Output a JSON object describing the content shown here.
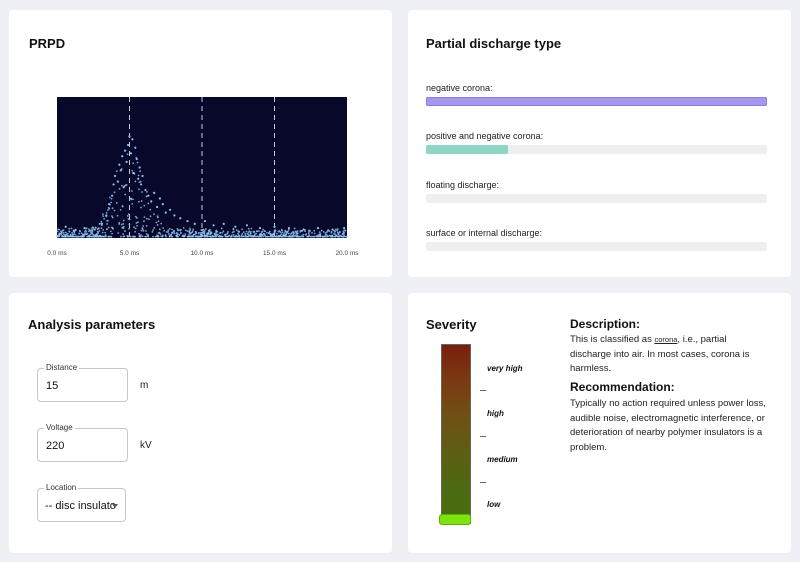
{
  "prpd": {
    "title": "PRPD",
    "chart_data": {
      "type": "scatter",
      "xlabel": "",
      "ylabel": "",
      "xlim": [
        0,
        20
      ],
      "ylim": [
        0,
        1
      ],
      "x_ticks": [
        "0.0 ms",
        "5.0 ms",
        "10.0 ms",
        "15.0 ms",
        "20.0 ms"
      ],
      "vertical_gridlines_at": [
        5,
        10,
        15
      ],
      "grid": true,
      "background": "#07082a",
      "point_color": "#8fc3f5",
      "series": [
        {
          "points": [
            [
              0.6,
              0.08
            ],
            [
              1.2,
              0.05
            ],
            [
              1.9,
              0.07
            ],
            [
              2.6,
              0.06
            ],
            [
              3.1,
              0.1
            ],
            [
              3.4,
              0.16
            ],
            [
              3.6,
              0.24
            ],
            [
              3.8,
              0.3
            ],
            [
              3.9,
              0.38
            ],
            [
              4.0,
              0.44
            ],
            [
              4.2,
              0.4
            ],
            [
              4.3,
              0.52
            ],
            [
              4.4,
              0.48
            ],
            [
              4.5,
              0.58
            ],
            [
              4.6,
              0.36
            ],
            [
              4.7,
              0.62
            ],
            [
              4.8,
              0.54
            ],
            [
              4.9,
              0.66
            ],
            [
              5.0,
              0.72
            ],
            [
              5.1,
              0.6
            ],
            [
              5.2,
              0.7
            ],
            [
              5.3,
              0.46
            ],
            [
              5.4,
              0.64
            ],
            [
              5.5,
              0.56
            ],
            [
              5.6,
              0.42
            ],
            [
              5.7,
              0.5
            ],
            [
              5.8,
              0.38
            ],
            [
              5.9,
              0.44
            ],
            [
              6.1,
              0.34
            ],
            [
              6.3,
              0.3
            ],
            [
              6.5,
              0.26
            ],
            [
              6.7,
              0.32
            ],
            [
              6.9,
              0.22
            ],
            [
              7.1,
              0.28
            ],
            [
              7.3,
              0.24
            ],
            [
              7.5,
              0.18
            ],
            [
              7.8,
              0.2
            ],
            [
              8.1,
              0.16
            ],
            [
              8.5,
              0.14
            ],
            [
              9.0,
              0.12
            ],
            [
              9.5,
              0.1
            ],
            [
              10.2,
              0.12
            ],
            [
              10.8,
              0.09
            ],
            [
              11.5,
              0.1
            ],
            [
              12.3,
              0.08
            ],
            [
              13.1,
              0.09
            ],
            [
              14.0,
              0.07
            ],
            [
              15.0,
              0.08
            ],
            [
              16.0,
              0.07
            ],
            [
              17.0,
              0.06
            ],
            [
              18.0,
              0.07
            ],
            [
              19.0,
              0.06
            ],
            [
              19.8,
              0.07
            ]
          ]
        }
      ]
    }
  },
  "pd_type": {
    "title": "Partial discharge type",
    "items": [
      {
        "label": "negative corona:",
        "value": 1.0,
        "color": "#a497ee",
        "border": "#8d7fe0"
      },
      {
        "label": "positive and negative corona:",
        "value": 0.24,
        "color": "#8ed5c6",
        "border": "#8ed5c6"
      },
      {
        "label": "floating discharge:",
        "value": 0.0,
        "color": "#8ed5c6",
        "border": "#8ed5c6"
      },
      {
        "label": "surface or internal discharge:",
        "value": 0.0,
        "color": "#8ed5c6",
        "border": "#8ed5c6"
      }
    ]
  },
  "params": {
    "title": "Analysis parameters",
    "distance": {
      "label": "Distance",
      "value": "15",
      "unit": "m"
    },
    "voltage": {
      "label": "Voltage",
      "value": "220",
      "unit": "kV"
    },
    "location": {
      "label": "Location",
      "value": "-- disc insulato"
    }
  },
  "severity": {
    "title": "Severity",
    "levels": [
      "very high",
      "high",
      "medium",
      "low"
    ],
    "current_level": "low",
    "description_heading": "Description:",
    "description_pre": "This is classified as ",
    "description_term": "corona",
    "description_post": ", i.e., partial discharge into air. In most cases, corona is harmless.",
    "recommendation_heading": "Recommendation:",
    "recommendation": "Typically no action required unless power loss, audible noise, electromagnetic interference, or deterioration of nearby polymer insulators is a problem."
  }
}
